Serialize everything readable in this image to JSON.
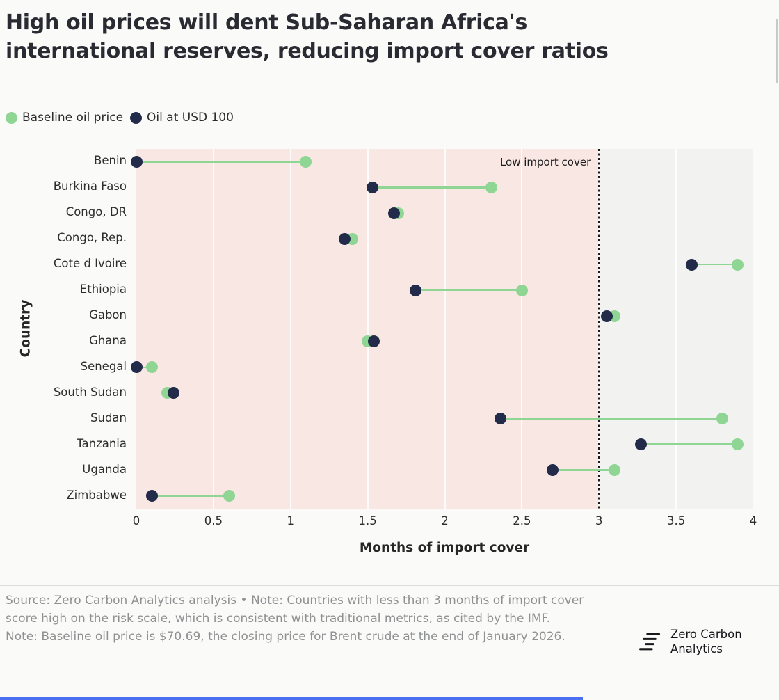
{
  "header": {
    "title_line1": "High oil prices will dent Sub-Saharan Africa's",
    "title_line2": "international reserves, reducing import cover ratios"
  },
  "legend": [
    {
      "label": "Baseline oil price",
      "color": "#8fd694"
    },
    {
      "label": "Oil at USD 100",
      "color": "#222b49"
    }
  ],
  "chart_data": {
    "type": "dumbbell",
    "title": "High oil prices will dent Sub-Saharan Africa's international reserves, reducing import cover ratios",
    "xlabel": "Months of import cover",
    "ylabel": "Country",
    "xlim": [
      0,
      4
    ],
    "xticks": [
      0,
      0.5,
      1,
      1.5,
      2,
      2.5,
      3,
      3.5,
      4
    ],
    "grid": "vertical",
    "legend_position": "top-left",
    "shaded_region": {
      "from": 0,
      "to": 3,
      "label": "Low import cover",
      "color": "#f9e7e4"
    },
    "threshold_line": {
      "x": 3,
      "style": "dotted",
      "color": "#1a1a1a"
    },
    "categories": [
      "Benin",
      "Burkina Faso",
      "Congo, DR",
      "Congo, Rep.",
      "Cote d Ivoire",
      "Ethiopia",
      "Gabon",
      "Ghana",
      "Senegal",
      "South Sudan",
      "Sudan",
      "Tanzania",
      "Uganda",
      "Zimbabwe"
    ],
    "series": [
      {
        "name": "Baseline oil price",
        "color": "#8fd694",
        "values": [
          1.1,
          2.3,
          1.7,
          1.4,
          3.9,
          2.5,
          3.1,
          1.5,
          0.1,
          0.2,
          3.8,
          3.9,
          3.1,
          0.6
        ]
      },
      {
        "name": "Oil at USD 100",
        "color": "#222b49",
        "values": [
          0.0,
          1.53,
          1.67,
          1.35,
          3.6,
          1.81,
          3.05,
          1.54,
          0.0,
          0.24,
          2.36,
          3.27,
          2.7,
          0.1
        ]
      }
    ]
  },
  "footer": {
    "source_note": "Source: Zero Carbon Analytics analysis • Note: Countries with less than 3 months of import cover score high on the risk scale, which is consistent with traditional metrics, as cited by the IMF.",
    "baseline_note": "Note: Baseline oil price is $70.69, the closing price for Brent crude at the end of January 2026.",
    "logo_line1": "Zero Carbon",
    "logo_line2": "Analytics"
  },
  "decor": {
    "bottom_bar_color": "#4a6ff3"
  }
}
